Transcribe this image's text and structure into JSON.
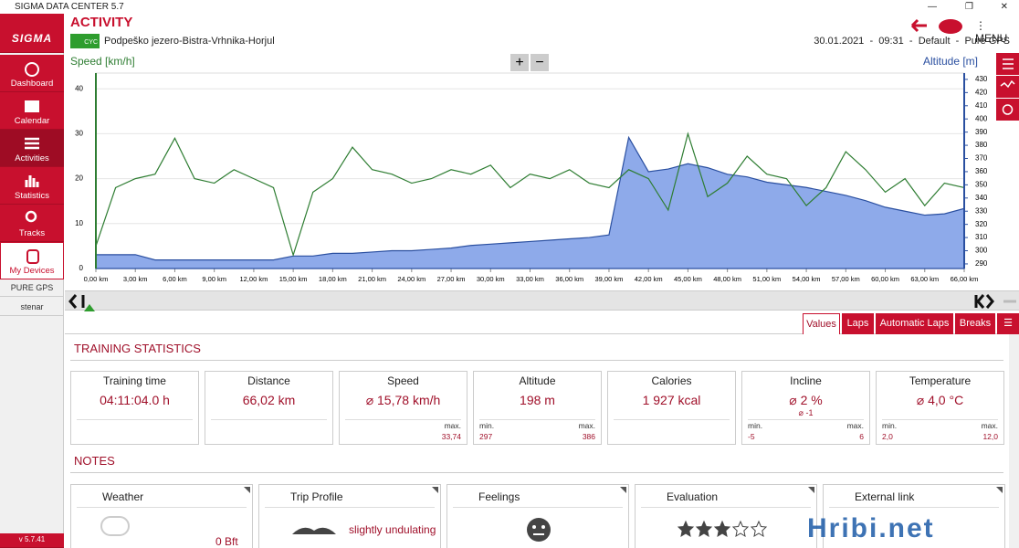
{
  "window": {
    "title": "SIGMA DATA CENTER 5.7",
    "menu": "MENU"
  },
  "sidebar": {
    "logo": "SIGMA",
    "items": [
      "Dashboard",
      "Calendar",
      "Activities",
      "Statistics",
      "Tracks",
      "My Devices"
    ],
    "devices": [
      "PURE GPS",
      "stenar"
    ],
    "version": "v 5.7.41"
  },
  "header": {
    "title": "ACTIVITY",
    "sport": "CYC",
    "track": "Podpeško jezero-Bistra-Vrhnika-Horjul",
    "date": "30.01.2021",
    "time": "09:31",
    "profile": "Default",
    "device": "Pure GPS",
    "separator": "-"
  },
  "chart_data": {
    "type": "line",
    "ylabel": "Speed [km/h]",
    "y2label": "Altitude [m]",
    "zoom_in": "+",
    "zoom_out": "−",
    "x": [
      0,
      1.5,
      3,
      4.5,
      6,
      7.5,
      9,
      10.5,
      12,
      13.5,
      15,
      16.5,
      18,
      19.5,
      21,
      22.5,
      24,
      25.5,
      27,
      28.5,
      30,
      31.5,
      33,
      34.5,
      36,
      37.5,
      39,
      40.5,
      42,
      43.5,
      45,
      46.5,
      48,
      49.5,
      51,
      52.5,
      54,
      55.5,
      57,
      58.5,
      60,
      61.5,
      63,
      64.5,
      66
    ],
    "series": [
      {
        "name": "Speed [km/h]",
        "color": "#2e7d32",
        "values": [
          5,
          18,
          20,
          21,
          29,
          20,
          19,
          22,
          20,
          18,
          3,
          17,
          20,
          27,
          22,
          21,
          19,
          20,
          22,
          21,
          23,
          18,
          21,
          20,
          22,
          19,
          18,
          22,
          20,
          13,
          30,
          16,
          19,
          25,
          21,
          20,
          14,
          18,
          26,
          22,
          17,
          20,
          14,
          19,
          18
        ]
      },
      {
        "name": "Altitude [m]",
        "color": "#2a4fa0",
        "fill": "#8eaaea",
        "axis": "y2",
        "values": [
          297,
          297,
          297,
          293,
          293,
          293,
          293,
          293,
          293,
          293,
          296,
          296,
          298,
          298,
          299,
          300,
          300,
          301,
          302,
          304,
          305,
          306,
          307,
          308,
          309,
          310,
          312,
          386,
          360,
          362,
          366,
          363,
          358,
          356,
          352,
          350,
          348,
          345,
          342,
          338,
          333,
          330,
          327,
          328,
          332
        ]
      }
    ],
    "xlim": [
      0,
      66
    ],
    "xticks": [
      {
        "value": 0,
        "label": "0,00 km"
      },
      {
        "value": 3,
        "label": "3,00 km"
      },
      {
        "value": 6,
        "label": "6,00 km"
      },
      {
        "value": 9,
        "label": "9,00 km"
      },
      {
        "value": 12,
        "label": "12,00 km"
      },
      {
        "value": 15,
        "label": "15,00 km"
      },
      {
        "value": 18,
        "label": "18,00 km"
      },
      {
        "value": 21,
        "label": "21,00 km"
      },
      {
        "value": 24,
        "label": "24,00 km"
      },
      {
        "value": 27,
        "label": "27,00 km"
      },
      {
        "value": 30,
        "label": "30,00 km"
      },
      {
        "value": 33,
        "label": "33,00 km"
      },
      {
        "value": 36,
        "label": "36,00 km"
      },
      {
        "value": 39,
        "label": "39,00 km"
      },
      {
        "value": 42,
        "label": "42,00 km"
      },
      {
        "value": 45,
        "label": "45,00 km"
      },
      {
        "value": 48,
        "label": "48,00 km"
      },
      {
        "value": 51,
        "label": "51,00 km"
      },
      {
        "value": 54,
        "label": "54,00 km"
      },
      {
        "value": 57,
        "label": "57,00 km"
      },
      {
        "value": 60,
        "label": "60,00 km"
      },
      {
        "value": 63,
        "label": "63,00 km"
      },
      {
        "value": 66,
        "label": "66,00 km"
      }
    ],
    "ylim": [
      0,
      43.5
    ],
    "yticks": [
      0,
      10,
      20,
      30,
      40
    ],
    "y2lim": [
      286.5,
      434.8
    ],
    "y2ticks": [
      290,
      300,
      310,
      320,
      330,
      340,
      350,
      360,
      370,
      380,
      390,
      400,
      410,
      420,
      430
    ],
    "grid": true
  },
  "tabs": [
    "Values",
    "Laps",
    "Automatic Laps",
    "Breaks"
  ],
  "training_statistics": {
    "title": "TRAINING STATISTICS",
    "cards": [
      {
        "title": "Training time",
        "value": "04:11:04.0 h"
      },
      {
        "title": "Distance",
        "value": "66,02 km"
      },
      {
        "title": "Speed",
        "value": "⌀ 15,78 km/h",
        "max_label": "max.",
        "max": "33,74"
      },
      {
        "title": "Altitude",
        "value": "198 m",
        "min_label": "min.",
        "min": "297",
        "max_label": "max.",
        "max": "386"
      },
      {
        "title": "Calories",
        "value": "1 927 kcal"
      },
      {
        "title": "Incline",
        "value": "⌀ 2 %",
        "value2": "⌀ -1",
        "min_label": "min.",
        "min": "-5",
        "max_label": "max.",
        "max": "6"
      },
      {
        "title": "Temperature",
        "value": "⌀ 4,0 °C",
        "min_label": "min.",
        "min": "2,0",
        "max_label": "max.",
        "max": "12,0"
      }
    ]
  },
  "notes": {
    "title": "NOTES",
    "cards": [
      {
        "title": "Weather",
        "value": "0 Bft"
      },
      {
        "title": "Trip Profile",
        "value": "slightly undulating"
      },
      {
        "title": "Feelings"
      },
      {
        "title": "Evaluation"
      },
      {
        "title": "External link"
      }
    ]
  },
  "watermark": "Hribi.net"
}
